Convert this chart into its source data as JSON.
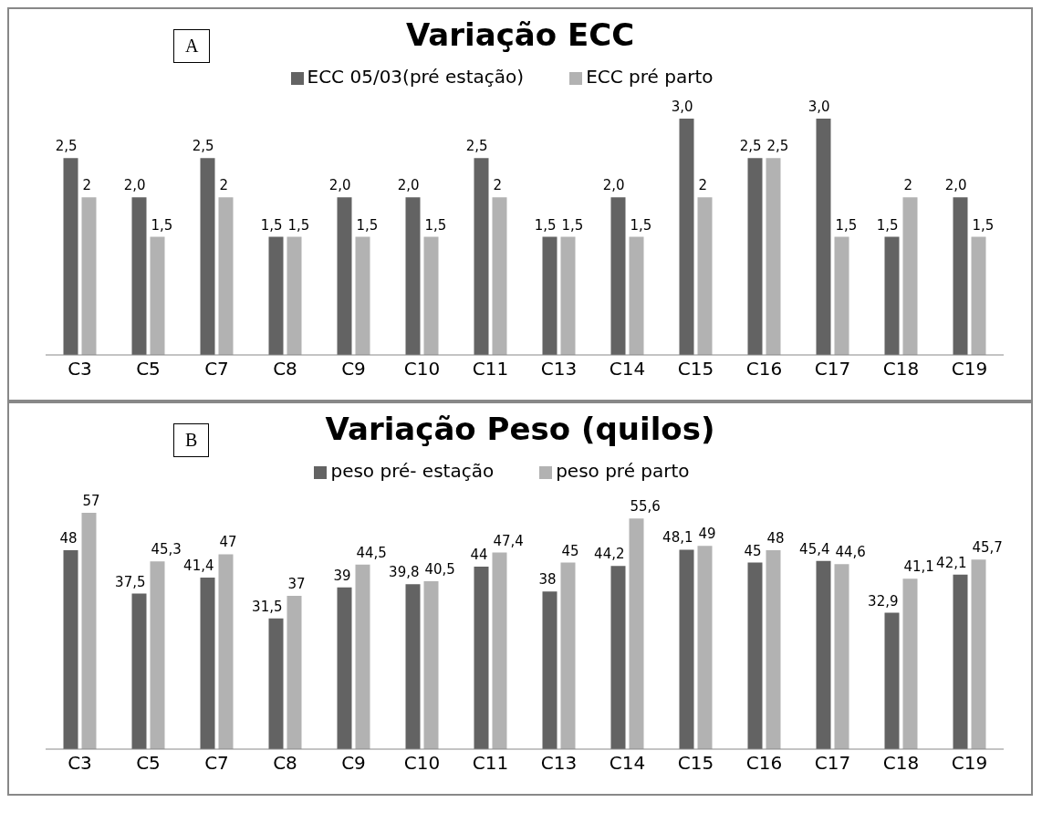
{
  "chart_data": [
    {
      "type": "bar",
      "title": "Variação ECC",
      "annotations": [
        "A"
      ],
      "legend": "top",
      "categories": [
        "C3",
        "C5",
        "C7",
        "C8",
        "C9",
        "C10",
        "C11",
        "C13",
        "C14",
        "C15",
        "C16",
        "C17",
        "C18",
        "C19"
      ],
      "series": [
        {
          "name": "ECC 05/03(pré estação)",
          "color": "#636363",
          "values": [
            2.5,
            2.0,
            2.5,
            1.5,
            2.0,
            2.0,
            2.5,
            1.5,
            2.0,
            3.0,
            2.5,
            3.0,
            1.5,
            2.0
          ],
          "value_labels": [
            "2,5",
            "2,0",
            "2,5",
            "1,5",
            "2,0",
            "2,0",
            "2,5",
            "1,5",
            "2,0",
            "3,0",
            "2,5",
            "3,0",
            "1,5",
            "2,0"
          ]
        },
        {
          "name": "ECC pré parto",
          "color": "#b2b2b2",
          "values": [
            2,
            1.5,
            2,
            1.5,
            1.5,
            1.5,
            2,
            1.5,
            1.5,
            2,
            2.5,
            1.5,
            2,
            1.5
          ],
          "value_labels": [
            "2",
            "1,5",
            "2",
            "1,5",
            "1,5",
            "1,5",
            "2",
            "1,5",
            "1,5",
            "2",
            "2,5",
            "1,5",
            "2",
            "1,5"
          ]
        }
      ]
    },
    {
      "type": "bar",
      "title": "Variação Peso (quilos)",
      "annotations": [
        "B"
      ],
      "legend": "top",
      "categories": [
        "C3",
        "C5",
        "C7",
        "C8",
        "C9",
        "C10",
        "C11",
        "C13",
        "C14",
        "C15",
        "C16",
        "C17",
        "C18",
        "C19"
      ],
      "series": [
        {
          "name": "peso pré- estação",
          "color": "#636363",
          "values": [
            48,
            37.5,
            41.4,
            31.5,
            39,
            39.8,
            44,
            38,
            44.2,
            48.1,
            45,
            45.4,
            32.9,
            42.1
          ],
          "value_labels": [
            "48",
            "37,5",
            "41,4",
            "31,5",
            "39",
            "39,8",
            "44",
            "38",
            "44,2",
            "48,1",
            "45",
            "45,4",
            "32,9",
            "42,1"
          ]
        },
        {
          "name": "peso pré parto",
          "color": "#b2b2b2",
          "values": [
            57,
            45.3,
            47,
            37,
            44.5,
            40.5,
            47.4,
            45,
            55.6,
            49,
            48,
            44.6,
            41.1,
            45.7
          ],
          "value_labels": [
            "57",
            "45,3",
            "47",
            "37",
            "44,5",
            "40,5",
            "47,4",
            "45",
            "55,6",
            "49",
            "48",
            "44,6",
            "41,1",
            "45,7"
          ]
        }
      ]
    }
  ]
}
